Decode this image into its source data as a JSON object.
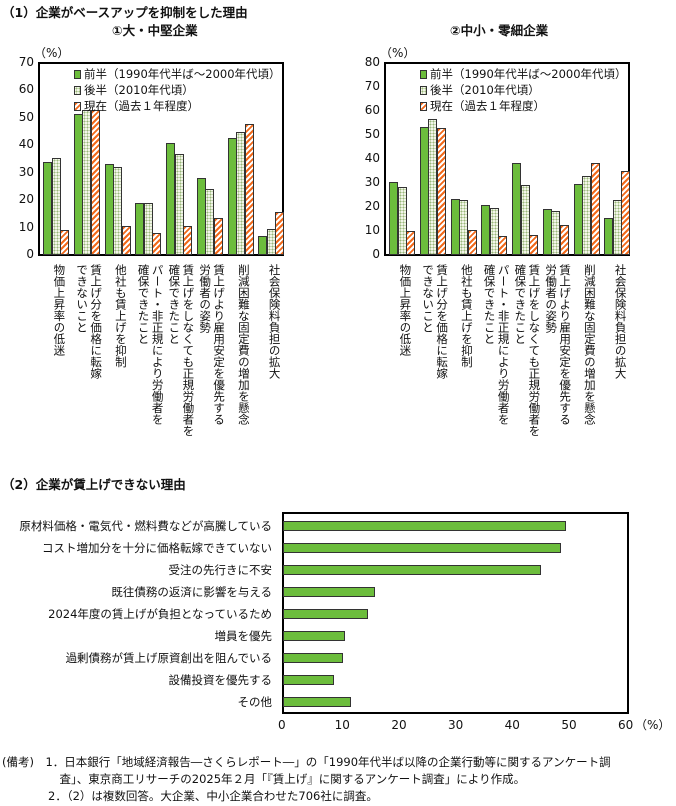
{
  "section1_title": "（1）企業がベースアップを抑制をした理由",
  "section2_title": "（2）企業が賃上げできない理由",
  "legend": [
    "前半（1990年代半ば～2000年代頃）",
    "後半（2010年代頃）",
    "現在（過去１年程度）"
  ],
  "colors": {
    "early": "#6cbd3c",
    "late": "#f2f6e8",
    "now": "#f26a1b"
  },
  "categories": [
    [
      "物価上昇率の低迷"
    ],
    [
      "賃上げ分を価格に転嫁",
      "できないこと"
    ],
    [
      "他社も賃上げを抑制"
    ],
    [
      "パート・非正規により労働者を",
      "確保できたこと"
    ],
    [
      "賃上げをしなくても正規労働者を",
      "確保できたこと"
    ],
    [
      "賃上げより雇用安定を優先する",
      "労働者の姿勢"
    ],
    [
      "削減困難な固定費の増加を懸念"
    ],
    [
      "社会保険料負担の拡大"
    ]
  ],
  "chart_data": [
    {
      "type": "bar",
      "title": "①大・中堅企業",
      "ylabel": "（%）",
      "ylim": [
        0,
        70
      ],
      "yticks": [
        "0",
        "10",
        "20",
        "30",
        "40",
        "50",
        "60",
        "70"
      ],
      "series": [
        {
          "name": "前半（1990年代半ば～2000年代頃）",
          "values": [
            34,
            35.5,
            9.2,
            51.5,
            52.8,
            53,
            33,
            32,
            10.5,
            19,
            19,
            8,
            41,
            36.8,
            10.5,
            28,
            24,
            13.5,
            42.7,
            44.8,
            47.6,
            7,
            9.5,
            15.5
          ]
        }
      ]
    },
    {
      "type": "bar",
      "title": "②中小・零細企業",
      "ylabel": "（%）",
      "ylim": [
        0,
        80
      ],
      "yticks": [
        "0",
        "10",
        "20",
        "30",
        "40",
        "50",
        "60",
        "70",
        "80"
      ],
      "series": [
        {
          "name": "grouped",
          "values": [
            30.5,
            28.5,
            10,
            53.5,
            56.5,
            53,
            23.5,
            23,
            10.3,
            21,
            19.5,
            8,
            38.3,
            29,
            8.2,
            19.3,
            18.5,
            12.5,
            29.5,
            33,
            38.3,
            15.5,
            23,
            35
          ]
        }
      ]
    },
    {
      "type": "bar",
      "orientation": "horizontal",
      "xlabel": "（%）",
      "xlim": [
        0,
        60
      ],
      "xticks": [
        "0",
        "10",
        "20",
        "30",
        "40",
        "50",
        "60"
      ],
      "categories": [
        "原材料価格・電気代・燃料費などが高騰している",
        "コスト増加分を十分に価格転嫁できていない",
        "受注の先行きに不安",
        "既往債務の返済に影響を与える",
        "2024年度の賃上げが負担となっているため",
        "増員を優先",
        "過剰債務が賃上げ原資創出を阻んでいる",
        "設備投資を優先する",
        "その他"
      ],
      "values": [
        50,
        49,
        45.5,
        16.2,
        15,
        11,
        10.5,
        9,
        12
      ]
    }
  ],
  "notes": [
    "(備考)　1．日本銀行「地域経済報告―さくらレポート―」の「1990年代半ば以降の企業行動等に関するアンケート調",
    "　　　　　査」、東京商工リサーチの2025年２月「『賃上げ』に関するアンケート調査」により作成。",
    "　　　　2．（2）は複数回答。大企業、中小企業合わせた706社に調査。"
  ]
}
